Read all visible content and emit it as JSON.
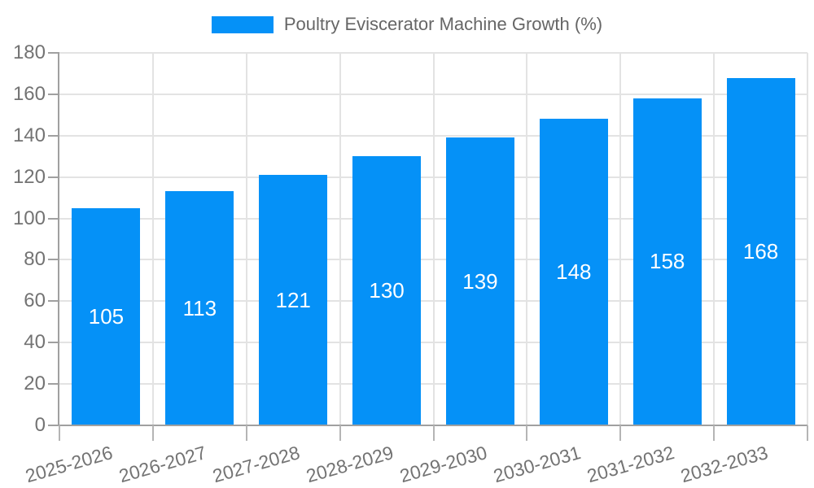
{
  "legend": {
    "label": "Poultry Eviscerator Machine Growth (%)"
  },
  "colors": {
    "bar": "#0591f7",
    "grid": "#e3e3e3",
    "axis": "#a0a0a0",
    "tick_label": "#737373",
    "legend_label": "#666666",
    "value_label": "#ffffff",
    "background": "#ffffff"
  },
  "chart_data": {
    "type": "bar",
    "title": "Poultry Eviscerator Machine Growth (%)",
    "categories": [
      "2025-2026",
      "2026-2027",
      "2027-2028",
      "2028-2029",
      "2029-2030",
      "2030-2031",
      "2031-2032",
      "2032-2033"
    ],
    "values": [
      105,
      113,
      121,
      130,
      139,
      148,
      158,
      168
    ],
    "xlabel": "",
    "ylabel": "",
    "ylim": [
      0,
      180
    ],
    "ytick_step": 20,
    "yticks": [
      0,
      20,
      40,
      60,
      80,
      100,
      120,
      140,
      160,
      180
    ],
    "grid": true,
    "grid_vertical": true,
    "legend_position": "top-center",
    "bar_value_labels": true,
    "bar_value_label_position": "center",
    "x_label_rotation_deg": -16
  }
}
